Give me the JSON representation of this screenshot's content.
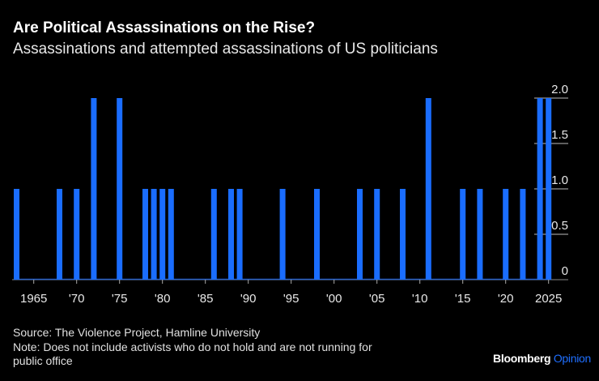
{
  "header": {
    "title": "Are Political Assassinations on the Rise?",
    "subtitle": "Assassinations and attempted assassinations of US politicians"
  },
  "chart_data": {
    "type": "bar",
    "title": "Are Political Assassinations on the Rise?",
    "subtitle": "Assassinations and attempted assassinations of US politicians",
    "xlabel": "",
    "ylabel": "",
    "x": [
      1963,
      1968,
      1970,
      1972,
      1975,
      1978,
      1979,
      1980,
      1981,
      1986,
      1988,
      1989,
      1994,
      1998,
      2003,
      2005,
      2008,
      2011,
      2015,
      2017,
      2020,
      2022,
      2024,
      2025
    ],
    "values": [
      1,
      1,
      1,
      2,
      2,
      1,
      1,
      1,
      1,
      1,
      1,
      1,
      1,
      1,
      1,
      1,
      1,
      2,
      1,
      1,
      1,
      1,
      2,
      2
    ],
    "note_zero": "all other years 1963-2025 are 0",
    "xlim": [
      1963,
      2025
    ],
    "ylim": [
      0,
      2.0
    ],
    "x_ticks": [
      {
        "year": 1965,
        "label": "1965"
      },
      {
        "year": 1970,
        "label": "'70"
      },
      {
        "year": 1975,
        "label": "'75"
      },
      {
        "year": 1980,
        "label": "'80"
      },
      {
        "year": 1985,
        "label": "'85"
      },
      {
        "year": 1990,
        "label": "'90"
      },
      {
        "year": 1995,
        "label": "'95"
      },
      {
        "year": 2000,
        "label": "'00"
      },
      {
        "year": 2005,
        "label": "'05"
      },
      {
        "year": 2010,
        "label": "'10"
      },
      {
        "year": 2015,
        "label": "'15"
      },
      {
        "year": 2020,
        "label": "'20"
      },
      {
        "year": 2025,
        "label": "2025"
      }
    ],
    "y_ticks": [
      {
        "value": 0,
        "label": "0"
      },
      {
        "value": 0.5,
        "label": "0.5"
      },
      {
        "value": 1.0,
        "label": "1.0"
      },
      {
        "value": 1.5,
        "label": "1.5"
      },
      {
        "value": 2.0,
        "label": "2.0"
      }
    ],
    "y_axis_position": "right",
    "grid": false,
    "bar_color": "#1a6dff"
  },
  "footer": {
    "source": "Source: The Violence Project, Hamline University",
    "note_line1": "Note: Does not include activists who do not hold and are not running for",
    "note_line2": "public office",
    "brand": "Bloomberg",
    "brand_accent": "Opinion"
  }
}
